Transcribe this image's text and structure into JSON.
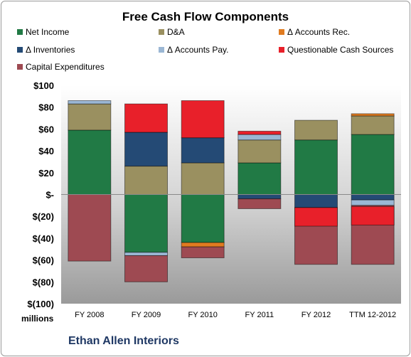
{
  "chart_data": {
    "type": "bar",
    "stacked": true,
    "title": "Free Cash Flow Components",
    "categories": [
      "FY 2008",
      "FY 2009",
      "FY 2010",
      "FY 2011",
      "FY 2012",
      "TTM 12-2012"
    ],
    "series": [
      {
        "name": "Net Income",
        "color": "#217a45",
        "values": [
          59,
          -53,
          -44,
          29,
          50,
          55
        ]
      },
      {
        "name": "D&A",
        "color": "#9a9060",
        "values": [
          24,
          26,
          29,
          21,
          18,
          17
        ]
      },
      {
        "name": "Δ Accounts Rec.",
        "color": "#e07b20",
        "values": [
          0,
          0,
          -4,
          0,
          0,
          2
        ]
      },
      {
        "name": "Δ Inventories",
        "color": "#244a75",
        "values": [
          0,
          31,
          23,
          -4,
          -12,
          -5
        ]
      },
      {
        "name": "Δ Accounts Pay.",
        "color": "#9bb7d4",
        "values": [
          3,
          -3,
          0,
          5,
          0,
          -5
        ]
      },
      {
        "name": "Questionable Cash Sources",
        "color": "#e8202a",
        "values": [
          0,
          26,
          34,
          3,
          0,
          0
        ]
      },
      {
        "name": "Capital Expenditures",
        "color": "#9e4a52",
        "values": [
          -61,
          -24,
          -10,
          -9,
          -52,
          -54
        ]
      }
    ],
    "extra_segments": [
      {
        "category": "FY 2012",
        "series": "Questionable Cash Sources",
        "from": -12,
        "to": -29
      },
      {
        "category": "TTM 12-2012",
        "series": "Questionable Cash Sources",
        "from": -11,
        "to": -28
      }
    ],
    "ylim": [
      -100,
      100
    ],
    "yticks": [
      100,
      80,
      60,
      40,
      20,
      0,
      -20,
      -40,
      -60,
      -80,
      -100
    ],
    "ytick_labels": [
      "$100",
      "$80",
      "$60",
      "$40",
      "$20",
      "$-",
      "$(20)",
      "$(40)",
      "$(60)",
      "$(80)",
      "$(100)"
    ],
    "ylabel": "millions",
    "legend_position": "top",
    "grid": false
  },
  "footer": {
    "company": "Ethan Allen Interiors"
  }
}
